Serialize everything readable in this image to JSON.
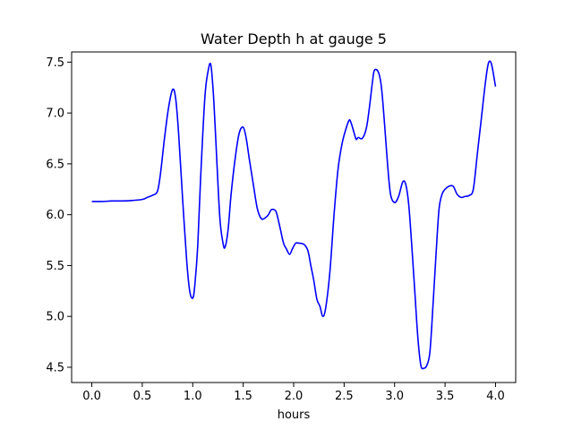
{
  "chart_data": {
    "type": "line",
    "title": "Water Depth h at gauge 5",
    "xlabel": "hours",
    "ylabel": "",
    "xlim": [
      -0.2,
      4.2
    ],
    "ylim": [
      4.35,
      7.6
    ],
    "xticks": [
      0.0,
      0.5,
      1.0,
      1.5,
      2.0,
      2.5,
      3.0,
      3.5,
      4.0
    ],
    "xtick_labels": [
      "0.0",
      "0.5",
      "1.0",
      "1.5",
      "2.0",
      "2.5",
      "3.0",
      "3.5",
      "4.0"
    ],
    "yticks": [
      4.5,
      5.0,
      5.5,
      6.0,
      6.5,
      7.0,
      7.5
    ],
    "ytick_labels": [
      "4.5",
      "5.0",
      "5.5",
      "6.0",
      "6.5",
      "7.0",
      "7.5"
    ],
    "grid": false,
    "legend": "none",
    "series": [
      {
        "color": "#0000ff",
        "x": [
          0.0,
          0.1,
          0.2,
          0.3,
          0.4,
          0.5,
          0.55,
          0.6,
          0.65,
          0.68,
          0.72,
          0.76,
          0.8,
          0.83,
          0.86,
          0.9,
          0.94,
          0.97,
          1.0,
          1.02,
          1.05,
          1.08,
          1.12,
          1.15,
          1.18,
          1.21,
          1.24,
          1.27,
          1.3,
          1.32,
          1.35,
          1.38,
          1.42,
          1.46,
          1.5,
          1.53,
          1.56,
          1.6,
          1.64,
          1.68,
          1.72,
          1.75,
          1.78,
          1.82,
          1.84,
          1.87,
          1.9,
          1.93,
          1.96,
          1.99,
          2.02,
          2.05,
          2.1,
          2.14,
          2.17,
          2.2,
          2.23,
          2.26,
          2.29,
          2.32,
          2.36,
          2.4,
          2.44,
          2.48,
          2.52,
          2.55,
          2.57,
          2.6,
          2.62,
          2.64,
          2.68,
          2.72,
          2.75,
          2.78,
          2.8,
          2.84,
          2.87,
          2.9,
          2.93,
          2.96,
          3.0,
          3.04,
          3.08,
          3.11,
          3.14,
          3.17,
          3.2,
          3.23,
          3.26,
          3.29,
          3.32,
          3.35,
          3.38,
          3.41,
          3.44,
          3.47,
          3.5,
          3.54,
          3.58,
          3.62,
          3.66,
          3.7,
          3.74,
          3.78,
          3.82,
          3.86,
          3.9,
          3.93,
          3.96,
          4.0
        ],
        "y": [
          6.13,
          6.13,
          6.135,
          6.135,
          6.14,
          6.15,
          6.17,
          6.19,
          6.23,
          6.4,
          6.75,
          7.05,
          7.23,
          7.15,
          6.8,
          6.15,
          5.55,
          5.25,
          5.18,
          5.3,
          5.7,
          6.4,
          7.15,
          7.4,
          7.47,
          7.1,
          6.5,
          5.95,
          5.72,
          5.68,
          5.85,
          6.2,
          6.55,
          6.8,
          6.86,
          6.75,
          6.55,
          6.3,
          6.06,
          5.96,
          5.97,
          6.0,
          6.05,
          6.04,
          5.98,
          5.85,
          5.72,
          5.66,
          5.61,
          5.67,
          5.72,
          5.72,
          5.71,
          5.65,
          5.5,
          5.35,
          5.17,
          5.1,
          5.0,
          5.1,
          5.45,
          6.0,
          6.45,
          6.7,
          6.85,
          6.93,
          6.9,
          6.8,
          6.74,
          6.76,
          6.75,
          6.85,
          7.05,
          7.3,
          7.42,
          7.4,
          7.25,
          6.9,
          6.5,
          6.2,
          6.12,
          6.18,
          6.32,
          6.3,
          6.1,
          5.7,
          5.25,
          4.8,
          4.52,
          4.49,
          4.52,
          4.65,
          5.1,
          5.6,
          6.05,
          6.2,
          6.25,
          6.28,
          6.28,
          6.2,
          6.17,
          6.18,
          6.19,
          6.25,
          6.6,
          6.95,
          7.3,
          7.49,
          7.48,
          7.26
        ]
      }
    ]
  }
}
